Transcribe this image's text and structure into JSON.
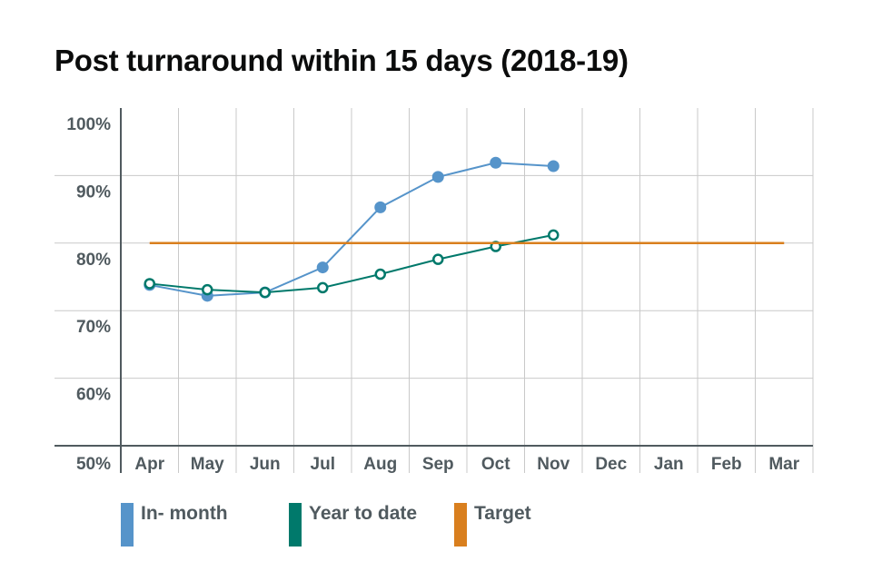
{
  "chart_data": {
    "type": "line",
    "title": "Post turnaround within 15 days (2018-19)",
    "xlabel": "",
    "ylabel": "",
    "categories": [
      "Apr",
      "May",
      "Jun",
      "Jul",
      "Aug",
      "Sep",
      "Oct",
      "Nov",
      "Dec",
      "Jan",
      "Feb",
      "Mar"
    ],
    "y_ticks": [
      "50%",
      "60%",
      "70%",
      "80%",
      "90%",
      "100%"
    ],
    "ylim": [
      50,
      100
    ],
    "grid": true,
    "legend_position": "bottom",
    "series": [
      {
        "name": "In- month",
        "color": "#5694ca",
        "marker": "filled",
        "values": [
          73.8,
          72.2,
          72.7,
          76.4,
          85.3,
          89.8,
          91.9,
          91.4,
          null,
          null,
          null,
          null
        ]
      },
      {
        "name": "Year to date",
        "color": "#00796b",
        "marker": "hollow",
        "values": [
          74.0,
          73.1,
          72.7,
          73.4,
          75.4,
          77.6,
          79.5,
          81.2,
          null,
          null,
          null,
          null
        ]
      },
      {
        "name": "Target",
        "color": "#d97f1e",
        "marker": "none",
        "values": [
          80,
          80,
          80,
          80,
          80,
          80,
          80,
          80,
          80,
          80,
          80,
          80
        ]
      }
    ]
  }
}
